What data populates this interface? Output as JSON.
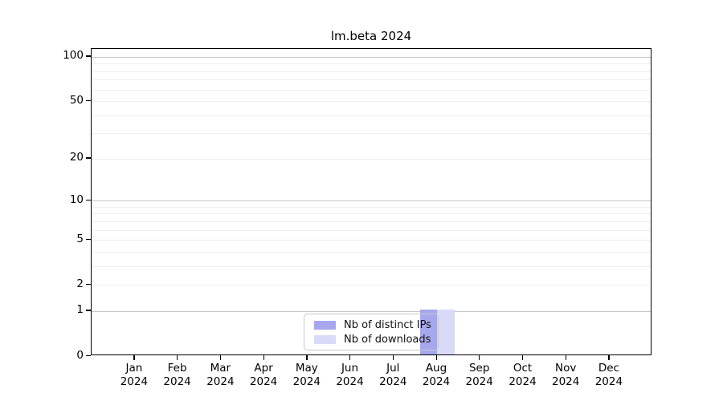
{
  "chart_data": {
    "type": "bar",
    "title": "lm.beta 2024",
    "x_tick_months": [
      "Jan",
      "Feb",
      "Mar",
      "Apr",
      "May",
      "Jun",
      "Jul",
      "Aug",
      "Sep",
      "Oct",
      "Nov",
      "Dec"
    ],
    "x_tick_year": "2024",
    "y_ticks": [
      0,
      1,
      2,
      5,
      10,
      20,
      50,
      100
    ],
    "y_scale": "log1p",
    "ylim": [
      0,
      113
    ],
    "y_major_grid": [
      1,
      10,
      100
    ],
    "y_minor_grid": [
      2,
      3,
      4,
      5,
      6,
      7,
      8,
      9,
      20,
      30,
      40,
      50,
      60,
      70,
      80,
      90
    ],
    "grid": "horizontal",
    "legend_position": "bottom-center-inside",
    "series": [
      {
        "name": "Nb of distinct IPs",
        "color": "#a7a7ee",
        "values": [
          0,
          0,
          0,
          0,
          0,
          0,
          0,
          1,
          0,
          0,
          0,
          0
        ]
      },
      {
        "name": "Nb of downloads",
        "color": "#d9d9f8",
        "values": [
          0,
          0,
          0,
          0,
          0,
          0,
          0,
          1,
          0,
          0,
          0,
          0
        ]
      }
    ]
  }
}
